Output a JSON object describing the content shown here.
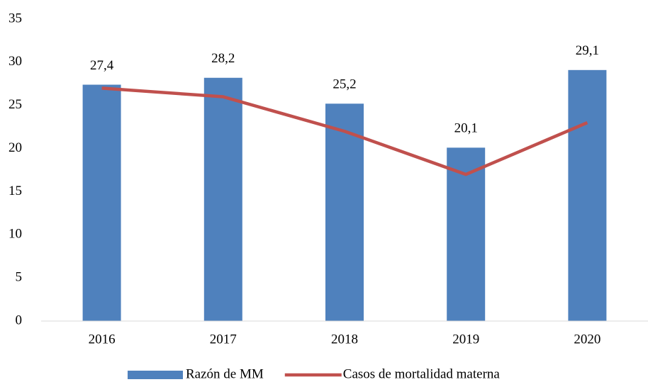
{
  "chart_data": {
    "type": "bar",
    "categories": [
      "2016",
      "2017",
      "2018",
      "2019",
      "2020"
    ],
    "series": [
      {
        "name": "Razón de MM",
        "type": "bar",
        "color": "#4f81bd",
        "values": [
          27.4,
          28.2,
          25.2,
          20.1,
          29.1
        ],
        "value_labels": [
          "27,4",
          "28,2",
          "25,2",
          "20,1",
          "29,1"
        ]
      },
      {
        "name": "Casos de mortalidad materna",
        "type": "line",
        "color": "#c0504d",
        "values": [
          27,
          26,
          22,
          17,
          23
        ]
      }
    ],
    "ylim": [
      0,
      35
    ],
    "yticks": [
      0,
      5,
      10,
      15,
      20,
      25,
      30,
      35
    ],
    "grid": false,
    "legend": "bottom"
  }
}
